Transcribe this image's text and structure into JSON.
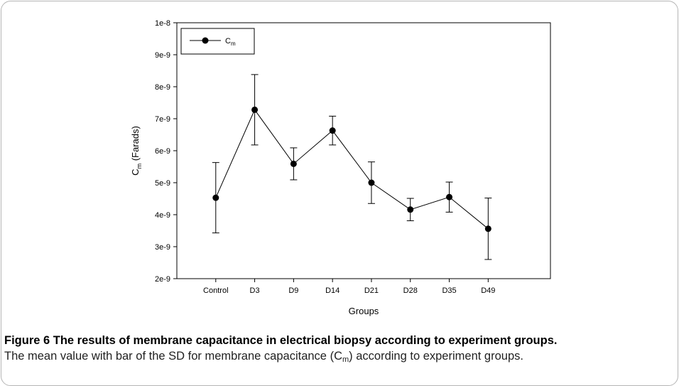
{
  "chart_data": {
    "type": "line",
    "xlabel": "Groups",
    "ylabel_parts": [
      "C",
      "m",
      " (Farads)"
    ],
    "categories": [
      "Control",
      "D3",
      "D9",
      "D14",
      "D21",
      "D28",
      "D35",
      "D49"
    ],
    "series": [
      {
        "name_parts": [
          "C",
          "m"
        ],
        "color": "#000000",
        "values": [
          4.53e-09,
          7.28e-09,
          5.59e-09,
          6.63e-09,
          5e-09,
          4.16e-09,
          4.55e-09,
          3.56e-09
        ],
        "errors": [
          1.1e-09,
          1.1e-09,
          5e-10,
          4.5e-10,
          6.5e-10,
          3.5e-10,
          4.7e-10,
          9.6e-10
        ]
      }
    ],
    "ylim": [
      2e-09,
      1e-08
    ],
    "yticks": [
      2e-09,
      3e-09,
      4e-09,
      5e-09,
      6e-09,
      7e-09,
      8e-09,
      9e-09,
      1e-08
    ],
    "legend": "upper left"
  },
  "caption": {
    "title": "Figure 6 The results of membrane capacitance in electrical biopsy according to experiment groups.",
    "text_parts": [
      "The mean value with bar of the SD for membrane capacitance (C",
      "m",
      ") according to experiment groups."
    ]
  }
}
